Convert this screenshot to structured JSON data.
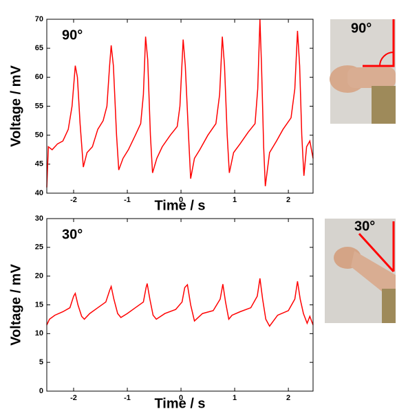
{
  "chart_data": [
    {
      "type": "line",
      "annotation": "90°",
      "x_label": "Time / s",
      "y_label": "Voltage / mV",
      "xlim": [
        -2.5,
        2.46
      ],
      "xticks": [
        -2,
        -1,
        0,
        1,
        2
      ],
      "ylim": [
        40,
        70
      ],
      "yticks": [
        40,
        45,
        50,
        55,
        60,
        65,
        70
      ],
      "color": "#ff0000",
      "x": [
        -2.5,
        -2.47,
        -2.4,
        -2.3,
        -2.2,
        -2.1,
        -2.03,
        -1.97,
        -1.93,
        -1.88,
        -1.82,
        -1.75,
        -1.65,
        -1.55,
        -1.45,
        -1.38,
        -1.33,
        -1.3,
        -1.26,
        -1.2,
        -1.16,
        -1.08,
        -0.98,
        -0.85,
        -0.75,
        -0.7,
        -0.66,
        -0.62,
        -0.57,
        -0.53,
        -0.45,
        -0.35,
        -0.2,
        -0.07,
        -0.02,
        0.04,
        0.08,
        0.14,
        0.18,
        0.25,
        0.35,
        0.5,
        0.65,
        0.72,
        0.77,
        0.81,
        0.86,
        0.9,
        0.98,
        1.1,
        1.25,
        1.38,
        1.43,
        1.47,
        1.5,
        1.54,
        1.57,
        1.65,
        1.78,
        1.9,
        2.05,
        2.12,
        2.17,
        2.21,
        2.25,
        2.29,
        2.34,
        2.4,
        2.46
      ],
      "values": [
        41,
        48,
        47.5,
        48.5,
        49,
        51,
        55,
        62,
        60,
        52,
        44.5,
        47,
        48,
        51,
        52.5,
        55,
        62,
        65.5,
        62,
        50,
        44,
        46,
        47.5,
        50,
        52,
        57,
        67,
        63,
        50,
        43.5,
        46,
        48,
        50,
        51.5,
        55,
        66.5,
        62,
        50,
        42.5,
        46,
        47.5,
        50,
        52,
        57,
        67,
        62,
        50,
        43.5,
        47,
        48.5,
        50.5,
        52,
        58,
        70,
        62,
        48,
        41.2,
        47,
        49,
        51,
        53,
        58,
        68,
        62,
        50,
        43,
        48,
        49,
        46
      ]
    },
    {
      "type": "line",
      "annotation": "30°",
      "x_label": "Time / s",
      "y_label": "Voltage / mV",
      "xlim": [
        -2.5,
        2.46
      ],
      "xticks": [
        -2,
        -1,
        0,
        1,
        2
      ],
      "ylim": [
        0,
        30
      ],
      "yticks": [
        0,
        5,
        10,
        15,
        20,
        25,
        30
      ],
      "color": "#ff0000",
      "x": [
        -2.5,
        -2.45,
        -2.35,
        -2.2,
        -2.07,
        -2.0,
        -1.97,
        -1.92,
        -1.85,
        -1.8,
        -1.7,
        -1.55,
        -1.4,
        -1.33,
        -1.3,
        -1.25,
        -1.18,
        -1.12,
        -1.0,
        -0.85,
        -0.7,
        -0.65,
        -0.63,
        -0.58,
        -0.52,
        -0.46,
        -0.3,
        -0.1,
        0.02,
        0.07,
        0.12,
        0.18,
        0.25,
        0.4,
        0.6,
        0.73,
        0.78,
        0.83,
        0.89,
        0.95,
        1.1,
        1.3,
        1.42,
        1.47,
        1.52,
        1.58,
        1.65,
        1.8,
        2.0,
        2.12,
        2.17,
        2.22,
        2.28,
        2.35,
        2.4,
        2.46
      ],
      "values": [
        11.5,
        12.5,
        13.2,
        13.8,
        14.5,
        16.5,
        17,
        15,
        13,
        12.5,
        13.5,
        14.5,
        15.5,
        17.5,
        18.2,
        16,
        13.5,
        12.8,
        13.5,
        14.5,
        15.5,
        18,
        18.7,
        16,
        13.2,
        12.5,
        13.5,
        14.2,
        15.5,
        18,
        18.5,
        15,
        12.2,
        13.5,
        14,
        16,
        18.6,
        15.5,
        12.5,
        13.2,
        13.8,
        14.5,
        16.5,
        19.6,
        16,
        12.5,
        11.3,
        13.2,
        14,
        16,
        19.1,
        16,
        13.5,
        11.8,
        13,
        11.5
      ]
    }
  ],
  "photos": [
    {
      "label": "90°"
    },
    {
      "label": "30°"
    }
  ]
}
